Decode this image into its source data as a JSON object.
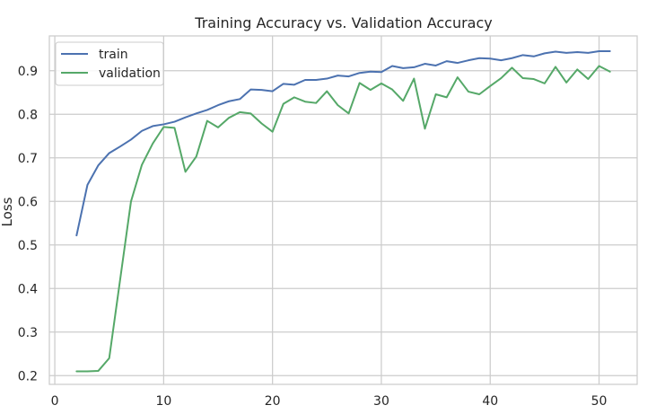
{
  "chart_data": {
    "type": "line",
    "title": "Training Accuracy vs. Validation Accuracy",
    "xlabel": "",
    "ylabel": "Loss",
    "xlim": [
      -0.5,
      53.5
    ],
    "ylim": [
      0.18,
      0.98
    ],
    "xticks": [
      0,
      10,
      20,
      30,
      40,
      50
    ],
    "yticks": [
      0.2,
      0.3,
      0.4,
      0.5,
      0.6,
      0.7,
      0.8,
      0.9
    ],
    "grid": true,
    "legend_position": "top-left",
    "x": [
      2,
      3,
      4,
      5,
      6,
      7,
      8,
      9,
      10,
      11,
      12,
      13,
      14,
      15,
      16,
      17,
      18,
      19,
      20,
      21,
      22,
      23,
      24,
      25,
      26,
      27,
      28,
      29,
      30,
      31,
      32,
      33,
      34,
      35,
      36,
      37,
      38,
      39,
      40,
      41,
      42,
      43,
      44,
      45,
      46,
      47,
      48,
      49,
      50,
      51
    ],
    "series": [
      {
        "name": "train",
        "color": "#4c72b0",
        "values": [
          0.522,
          0.638,
          0.683,
          0.711,
          0.726,
          0.742,
          0.762,
          0.773,
          0.777,
          0.783,
          0.793,
          0.802,
          0.81,
          0.821,
          0.83,
          0.835,
          0.857,
          0.856,
          0.853,
          0.87,
          0.868,
          0.879,
          0.879,
          0.882,
          0.889,
          0.887,
          0.895,
          0.898,
          0.897,
          0.911,
          0.906,
          0.908,
          0.916,
          0.912,
          0.922,
          0.918,
          0.924,
          0.929,
          0.928,
          0.924,
          0.929,
          0.936,
          0.933,
          0.94,
          0.944,
          0.941,
          0.943,
          0.941,
          0.945,
          0.945
        ]
      },
      {
        "name": "validation",
        "color": "#55a868",
        "values": [
          0.21,
          0.21,
          0.211,
          0.24,
          0.42,
          0.6,
          0.684,
          0.733,
          0.771,
          0.769,
          0.668,
          0.703,
          0.785,
          0.77,
          0.792,
          0.805,
          0.802,
          0.779,
          0.76,
          0.824,
          0.839,
          0.829,
          0.826,
          0.853,
          0.821,
          0.802,
          0.872,
          0.856,
          0.871,
          0.857,
          0.831,
          0.882,
          0.767,
          0.846,
          0.839,
          0.885,
          0.852,
          0.846,
          0.865,
          0.883,
          0.907,
          0.883,
          0.881,
          0.871,
          0.909,
          0.873,
          0.903,
          0.881,
          0.911,
          0.898
        ]
      }
    ]
  }
}
